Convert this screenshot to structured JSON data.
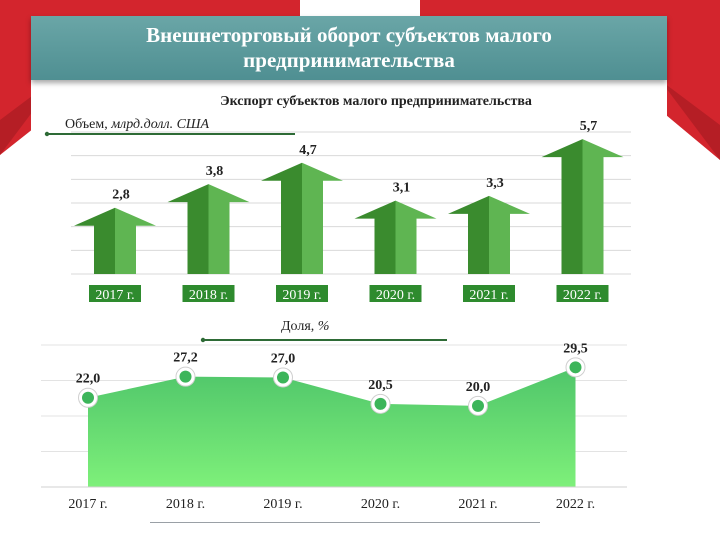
{
  "banner": {
    "title": "Внешнеторговый оборот субъектов малого предпринимательства"
  },
  "colors": {
    "banner": "#5f9ea0",
    "accent_red": "#d3252d",
    "arrow_dark": "#3a8b2e",
    "arrow_light": "#5fb552",
    "label_bg": "#2e8b2e",
    "area_top": "#4fc56a",
    "area_bottom": "#7ef07a",
    "marker": "#3cb55a",
    "text": "#222222"
  },
  "chart_data": [
    {
      "type": "bar",
      "title": "Экспорт субъектов малого предпринимательства",
      "ylabel_prefix": "Объем, ",
      "ylabel_unit": "млрд.долл. США",
      "categories": [
        "2017 г.",
        "2018 г.",
        "2019 г.",
        "2020 г.",
        "2021 г.",
        "2022 г."
      ],
      "values": [
        2.8,
        3.8,
        4.7,
        3.1,
        3.3,
        5.7
      ],
      "value_labels": [
        "2,8",
        "3,8",
        "4,7",
        "3,1",
        "3,3",
        "5,7"
      ],
      "ylim": [
        0,
        6
      ],
      "grid": true,
      "mark_shape": "arrow"
    },
    {
      "type": "area",
      "ylabel_prefix": "Доля, ",
      "ylabel_unit": "%",
      "categories": [
        "2017 г.",
        "2018 г.",
        "2019 г.",
        "2020 г.",
        "2021 г.",
        "2022 г."
      ],
      "values": [
        22.0,
        27.2,
        27.0,
        20.5,
        20.0,
        29.5
      ],
      "value_labels": [
        "22,0",
        "27,2",
        "27,0",
        "20,5",
        "20,0",
        "29,5"
      ],
      "ylim": [
        0,
        35
      ],
      "grid": true
    }
  ]
}
